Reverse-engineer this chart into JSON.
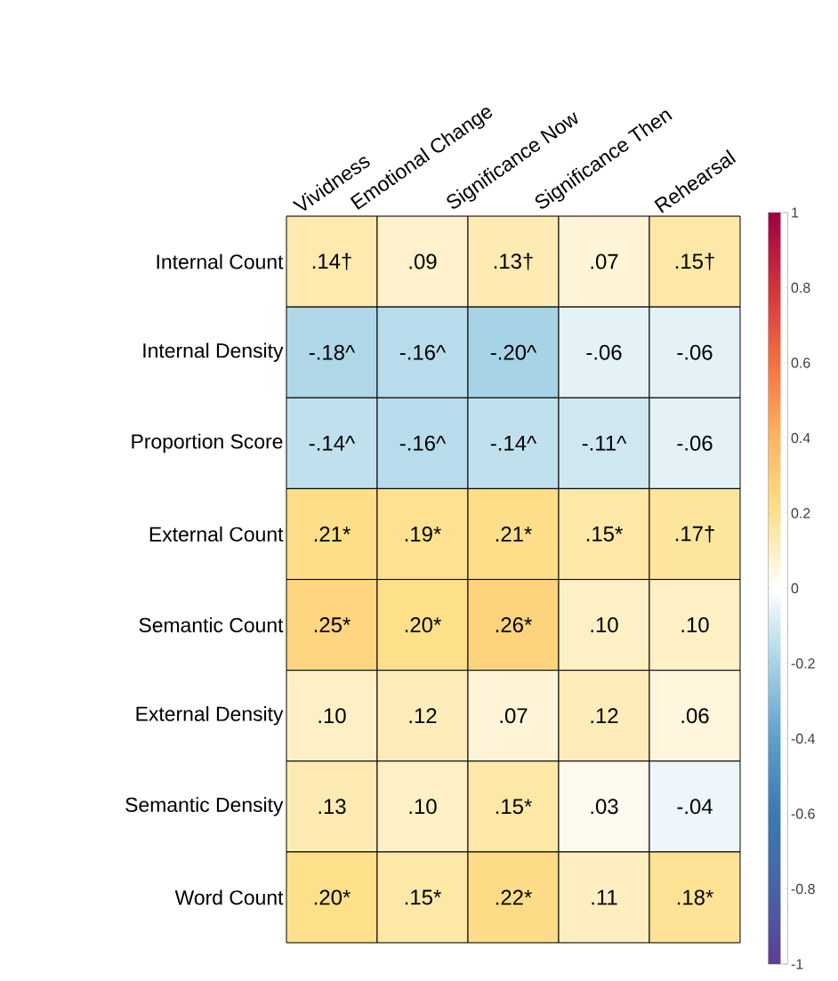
{
  "chart_data": {
    "type": "heatmap",
    "categories": [
      "Vividness",
      "Emotional Change",
      "Significance Now",
      "Significance Then",
      "Rehearsal"
    ],
    "y_categories": [
      "Internal Count",
      "Internal Density",
      "Proportion Score",
      "External Count",
      "Semantic Count",
      "External Density",
      "Semantic Density",
      "Word Count"
    ],
    "cells": [
      [
        0.14,
        0.09,
        0.13,
        0.07,
        0.15
      ],
      [
        -0.18,
        -0.16,
        -0.2,
        -0.06,
        -0.06
      ],
      [
        -0.14,
        -0.16,
        -0.14,
        -0.11,
        -0.06
      ],
      [
        0.21,
        0.19,
        0.21,
        0.15,
        0.17
      ],
      [
        0.25,
        0.2,
        0.26,
        0.1,
        0.1
      ],
      [
        0.1,
        0.12,
        0.07,
        0.12,
        0.06
      ],
      [
        0.13,
        0.1,
        0.15,
        0.03,
        -0.04
      ],
      [
        0.2,
        0.15,
        0.22,
        0.11,
        0.18
      ]
    ],
    "cell_labels": [
      [
        ".14†",
        ".09",
        ".13†",
        ".07",
        ".15†"
      ],
      [
        "-.18^",
        "-.16^",
        "-.20^",
        "-.06",
        "-.06"
      ],
      [
        "-.14^",
        "-.16^",
        "-.14^",
        "-.11^",
        "-.06"
      ],
      [
        ".21*",
        ".19*",
        ".21*",
        ".15*",
        ".17†"
      ],
      [
        ".25*",
        ".20*",
        ".26*",
        ".10",
        ".10"
      ],
      [
        ".10",
        ".12",
        ".07",
        ".12",
        ".06"
      ],
      [
        ".13",
        ".10",
        ".15*",
        ".03",
        "-.04"
      ],
      [
        ".20*",
        ".15*",
        ".22*",
        ".11",
        ".18*"
      ]
    ],
    "clim": [
      -1,
      1
    ],
    "cticks": [
      -1,
      -0.8,
      -0.6,
      -0.4,
      -0.2,
      0,
      0.2,
      0.4,
      0.6,
      0.8,
      1
    ]
  }
}
